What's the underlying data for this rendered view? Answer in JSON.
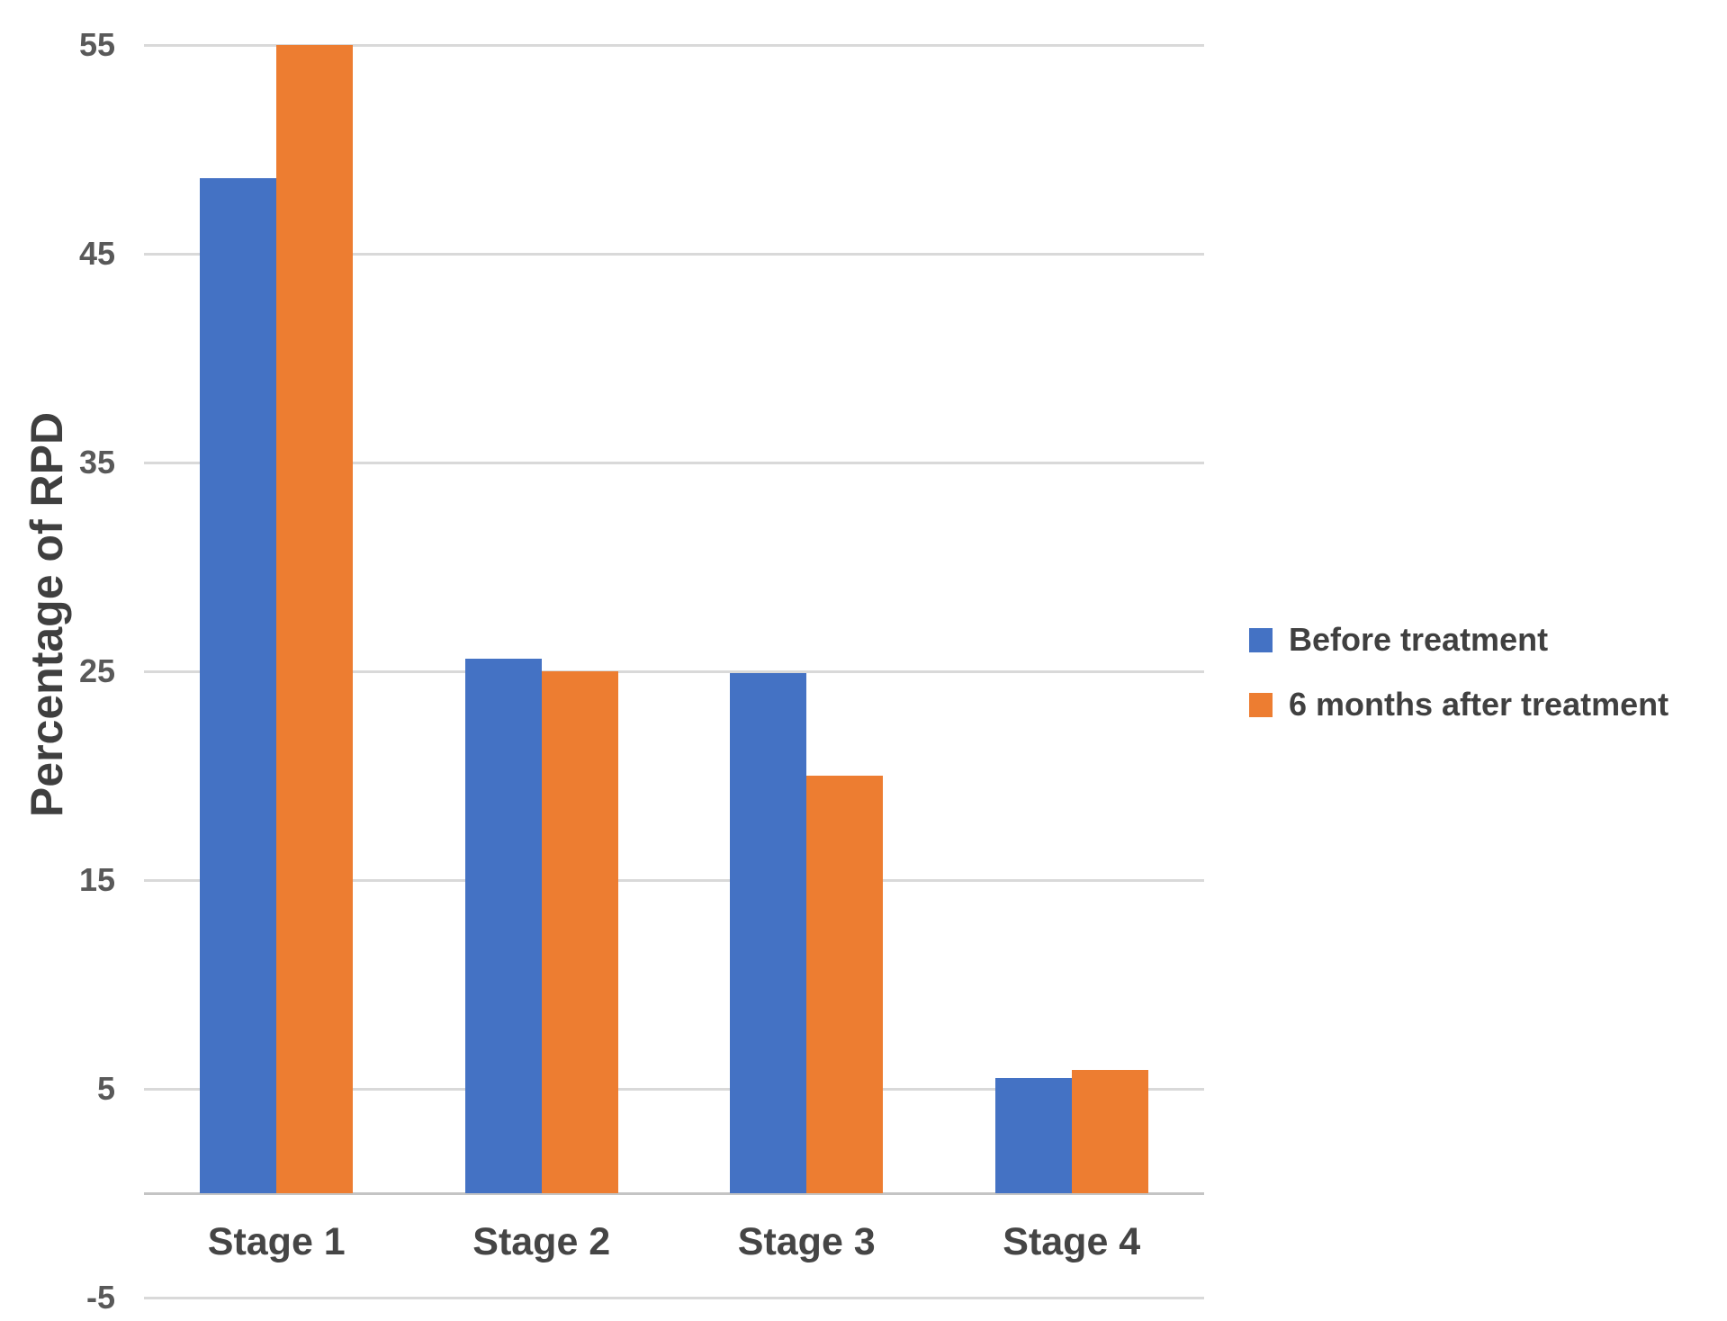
{
  "chart_data": {
    "type": "bar",
    "title": "",
    "xlabel": "",
    "ylabel": "Percentage of RPD",
    "categories": [
      "Stage 1",
      "Stage 2",
      "Stage 3",
      "Stage 4"
    ],
    "series": [
      {
        "name": "Before treatment",
        "color": "#4472C4",
        "values": [
          48.6,
          25.6,
          24.9,
          5.5
        ]
      },
      {
        "name": "6 months after treatment",
        "color": "#ED7D31",
        "values": [
          55,
          25,
          20,
          5.9
        ]
      }
    ],
    "yticks": [
      55,
      45,
      35,
      25,
      15,
      5,
      -5
    ],
    "ylim": [
      -5,
      55
    ],
    "grid": "horizontal",
    "legend_position": "right",
    "background_color": "#ffffff",
    "gridline_color": "#D9D9D9",
    "axis_line_color": "#C4C4C4",
    "tick_label_color": "#595959",
    "category_label_color": "#454545",
    "legend_text_color": "#404040"
  }
}
